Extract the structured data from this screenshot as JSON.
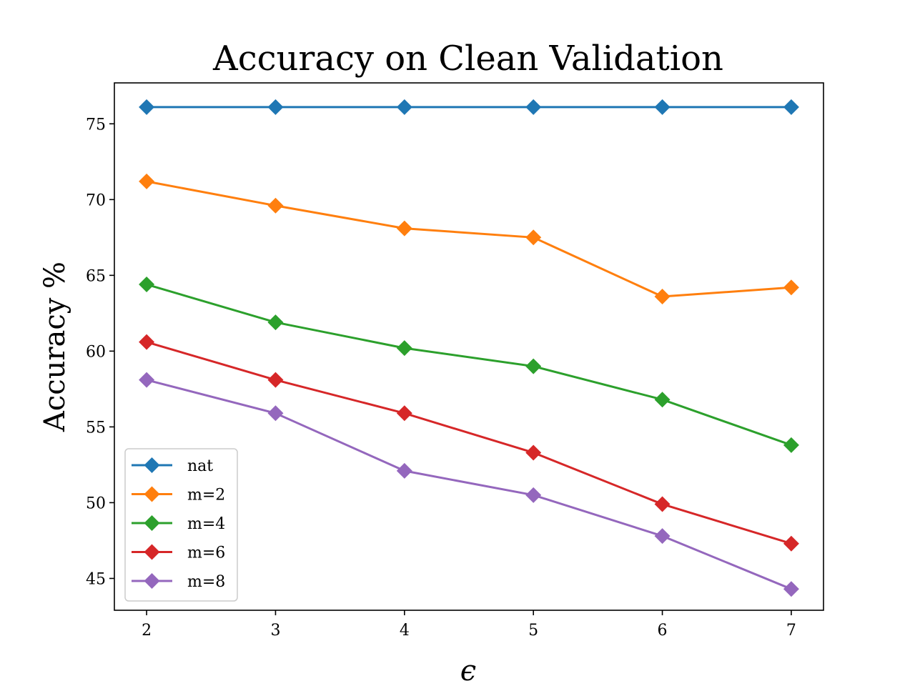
{
  "chart_data": {
    "type": "line",
    "title": "Accuracy on Clean Validation",
    "xlabel": "ϵ",
    "ylabel": "Accuracy %",
    "x": [
      2,
      3,
      4,
      5,
      6,
      7
    ],
    "xlim": [
      1.75,
      7.25
    ],
    "ylim": [
      42.9,
      77.7
    ],
    "xticks": [
      2,
      3,
      4,
      5,
      6,
      7
    ],
    "yticks": [
      45,
      50,
      55,
      60,
      65,
      70,
      75
    ],
    "grid": false,
    "legend_position": "lower-left",
    "marker": "diamond",
    "series": [
      {
        "name": "nat",
        "color": "#1f77b4",
        "values": [
          76.1,
          76.1,
          76.1,
          76.1,
          76.1,
          76.1
        ]
      },
      {
        "name": "m=2",
        "color": "#ff7f0e",
        "values": [
          71.2,
          69.6,
          68.1,
          67.5,
          63.6,
          64.2
        ]
      },
      {
        "name": "m=4",
        "color": "#2ca02c",
        "values": [
          64.4,
          61.9,
          60.2,
          59.0,
          56.8,
          53.8
        ]
      },
      {
        "name": "m=6",
        "color": "#d62728",
        "values": [
          60.6,
          58.1,
          55.9,
          53.3,
          49.9,
          47.3
        ]
      },
      {
        "name": "m=8",
        "color": "#9467bd",
        "values": [
          58.1,
          55.9,
          52.1,
          50.5,
          47.8,
          44.3
        ]
      }
    ]
  }
}
